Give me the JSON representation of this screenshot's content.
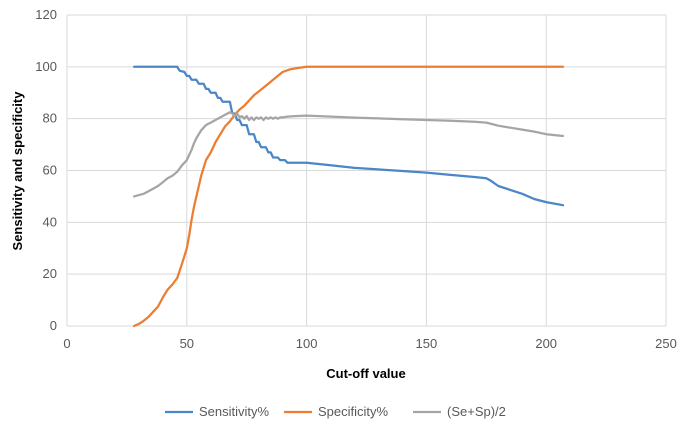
{
  "chart_data": {
    "type": "line",
    "title": "",
    "xlabel": "Cut-off value",
    "ylabel": "Sensitivity and specificity",
    "xlim": [
      0,
      250
    ],
    "ylim": [
      0,
      120
    ],
    "xticks": [
      0,
      50,
      100,
      150,
      200,
      250
    ],
    "yticks": [
      0,
      20,
      40,
      60,
      80,
      100,
      120
    ],
    "grid": "vertical and horizontal",
    "legend": "bottom",
    "series": [
      {
        "name": "Sensitivity%",
        "color": "#4a86c8",
        "points": [
          [
            28,
            100
          ],
          [
            46,
            100
          ],
          [
            47,
            98.5
          ],
          [
            49,
            98
          ],
          [
            50,
            96.5
          ],
          [
            51,
            96.5
          ],
          [
            52,
            95
          ],
          [
            54,
            95
          ],
          [
            55,
            93.5
          ],
          [
            57,
            93.5
          ],
          [
            58,
            91.5
          ],
          [
            59,
            91.5
          ],
          [
            60,
            90
          ],
          [
            62,
            90
          ],
          [
            63,
            88
          ],
          [
            64,
            88
          ],
          [
            65,
            86.5
          ],
          [
            68,
            86.5
          ],
          [
            69,
            82
          ],
          [
            70,
            82
          ],
          [
            71,
            79.5
          ],
          [
            72,
            79.5
          ],
          [
            73,
            77.5
          ],
          [
            75,
            77.5
          ],
          [
            76,
            74
          ],
          [
            78,
            74
          ],
          [
            79,
            71
          ],
          [
            80,
            71
          ],
          [
            81,
            69
          ],
          [
            83,
            69
          ],
          [
            84,
            67
          ],
          [
            85,
            67
          ],
          [
            86,
            65
          ],
          [
            88,
            65
          ],
          [
            89,
            64
          ],
          [
            91,
            64
          ],
          [
            92,
            63
          ],
          [
            95,
            63
          ],
          [
            100,
            63
          ],
          [
            105,
            62.5
          ],
          [
            110,
            62
          ],
          [
            120,
            61
          ],
          [
            140,
            59.8
          ],
          [
            150,
            59.2
          ],
          [
            160,
            58.3
          ],
          [
            170,
            57.5
          ],
          [
            175,
            57
          ],
          [
            177,
            56
          ],
          [
            180,
            54
          ],
          [
            185,
            52.5
          ],
          [
            190,
            51
          ],
          [
            195,
            49
          ],
          [
            200,
            47.8
          ],
          [
            207,
            46.6
          ]
        ]
      },
      {
        "name": "Specificity%",
        "color": "#ed7d31",
        "points": [
          [
            28,
            0
          ],
          [
            30,
            0.8
          ],
          [
            32,
            2
          ],
          [
            34,
            3.5
          ],
          [
            36,
            5.5
          ],
          [
            38,
            7.5
          ],
          [
            40,
            11
          ],
          [
            42,
            14
          ],
          [
            44,
            16
          ],
          [
            46,
            18.5
          ],
          [
            48,
            24
          ],
          [
            50,
            30
          ],
          [
            51,
            35
          ],
          [
            52,
            41
          ],
          [
            53,
            46
          ],
          [
            54,
            50
          ],
          [
            55,
            54
          ],
          [
            56,
            58
          ],
          [
            57,
            61
          ],
          [
            58,
            64
          ],
          [
            60,
            67
          ],
          [
            62,
            71
          ],
          [
            64,
            74
          ],
          [
            66,
            77
          ],
          [
            68,
            79
          ],
          [
            70,
            81.5
          ],
          [
            72,
            83.5
          ],
          [
            74,
            85
          ],
          [
            76,
            87
          ],
          [
            78,
            89
          ],
          [
            80,
            90.5
          ],
          [
            82,
            92
          ],
          [
            84,
            93.5
          ],
          [
            86,
            95
          ],
          [
            88,
            96.5
          ],
          [
            90,
            98
          ],
          [
            93,
            99
          ],
          [
            96,
            99.5
          ],
          [
            100,
            100
          ],
          [
            207,
            100
          ]
        ]
      },
      {
        "name": "(Se+Sp)/2",
        "color": "#a5a5a5",
        "points": [
          [
            28,
            50
          ],
          [
            30,
            50.5
          ],
          [
            32,
            51
          ],
          [
            34,
            52
          ],
          [
            36,
            53
          ],
          [
            38,
            54
          ],
          [
            40,
            55.5
          ],
          [
            42,
            57
          ],
          [
            44,
            58
          ],
          [
            46,
            59.5
          ],
          [
            48,
            62
          ],
          [
            50,
            64
          ],
          [
            51,
            66
          ],
          [
            52,
            68
          ],
          [
            53,
            70.5
          ],
          [
            54,
            72.5
          ],
          [
            55,
            74
          ],
          [
            56,
            75.5
          ],
          [
            57,
            76.5
          ],
          [
            58,
            77.5
          ],
          [
            59,
            78
          ],
          [
            60,
            78.5
          ],
          [
            61,
            79
          ],
          [
            62,
            79.5
          ],
          [
            63,
            80
          ],
          [
            64,
            80.5
          ],
          [
            65,
            81
          ],
          [
            66,
            81.5
          ],
          [
            67,
            82
          ],
          [
            68,
            82.5
          ],
          [
            69,
            82
          ],
          [
            70,
            81
          ],
          [
            71,
            82
          ],
          [
            72,
            80.5
          ],
          [
            73,
            81
          ],
          [
            74,
            80
          ],
          [
            75,
            81
          ],
          [
            76,
            79.5
          ],
          [
            77,
            80.5
          ],
          [
            78,
            79.5
          ],
          [
            79,
            80.5
          ],
          [
            80,
            80
          ],
          [
            81,
            80.5
          ],
          [
            82,
            79.5
          ],
          [
            83,
            80.5
          ],
          [
            84,
            80
          ],
          [
            85,
            80.5
          ],
          [
            86,
            80
          ],
          [
            87,
            80.5
          ],
          [
            88,
            80
          ],
          [
            89,
            80.5
          ],
          [
            90,
            80.5
          ],
          [
            92,
            80.8
          ],
          [
            95,
            81
          ],
          [
            100,
            81.2
          ],
          [
            105,
            81
          ],
          [
            110,
            80.8
          ],
          [
            120,
            80.4
          ],
          [
            130,
            80.1
          ],
          [
            140,
            79.8
          ],
          [
            150,
            79.5
          ],
          [
            160,
            79.2
          ],
          [
            170,
            78.8
          ],
          [
            175,
            78.5
          ],
          [
            180,
            77.3
          ],
          [
            185,
            76.5
          ],
          [
            190,
            75.8
          ],
          [
            195,
            75
          ],
          [
            200,
            74
          ],
          [
            207,
            73.3
          ]
        ]
      }
    ]
  }
}
